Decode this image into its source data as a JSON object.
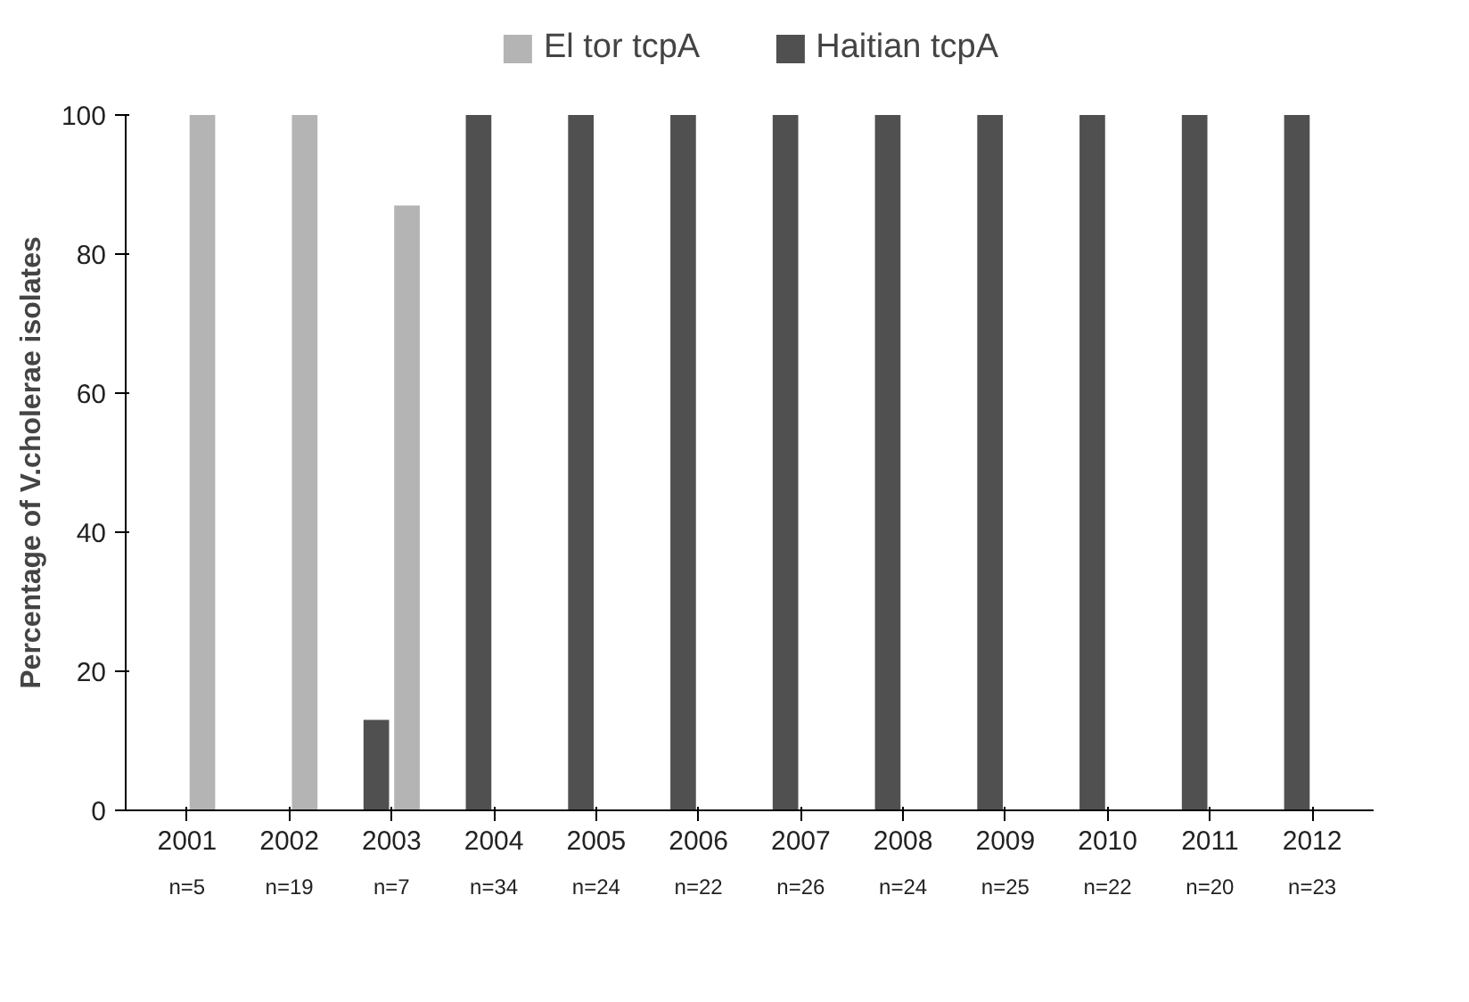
{
  "chart_data": {
    "type": "bar",
    "ylabel": "Percentage of V.cholerae isolates",
    "categories": [
      "2001\nn=5",
      "2002\nn=19",
      "2003\nn=7",
      "2004\nn=34",
      "2005\nn=24",
      "2006\nn=22",
      "2007\nn=26",
      "2008\nn=24",
      "2009\nn=25",
      "2010\nn=22",
      "2011\nn=20",
      "2012\nn=23"
    ],
    "series": [
      {
        "name": "Haitian tcpA",
        "color": "#505050",
        "values": [
          0,
          0,
          13,
          100,
          100,
          100,
          100,
          100,
          100,
          100,
          100,
          100
        ]
      },
      {
        "name": "El tor tcpA",
        "color": "#b4b4b4",
        "values": [
          100,
          100,
          87,
          0,
          0,
          0,
          0,
          0,
          0,
          0,
          0,
          0
        ]
      }
    ],
    "ylim": [
      0,
      100
    ],
    "yticks": [
      0,
      20,
      40,
      60,
      80,
      100
    ],
    "grid": false,
    "legend": "top"
  }
}
